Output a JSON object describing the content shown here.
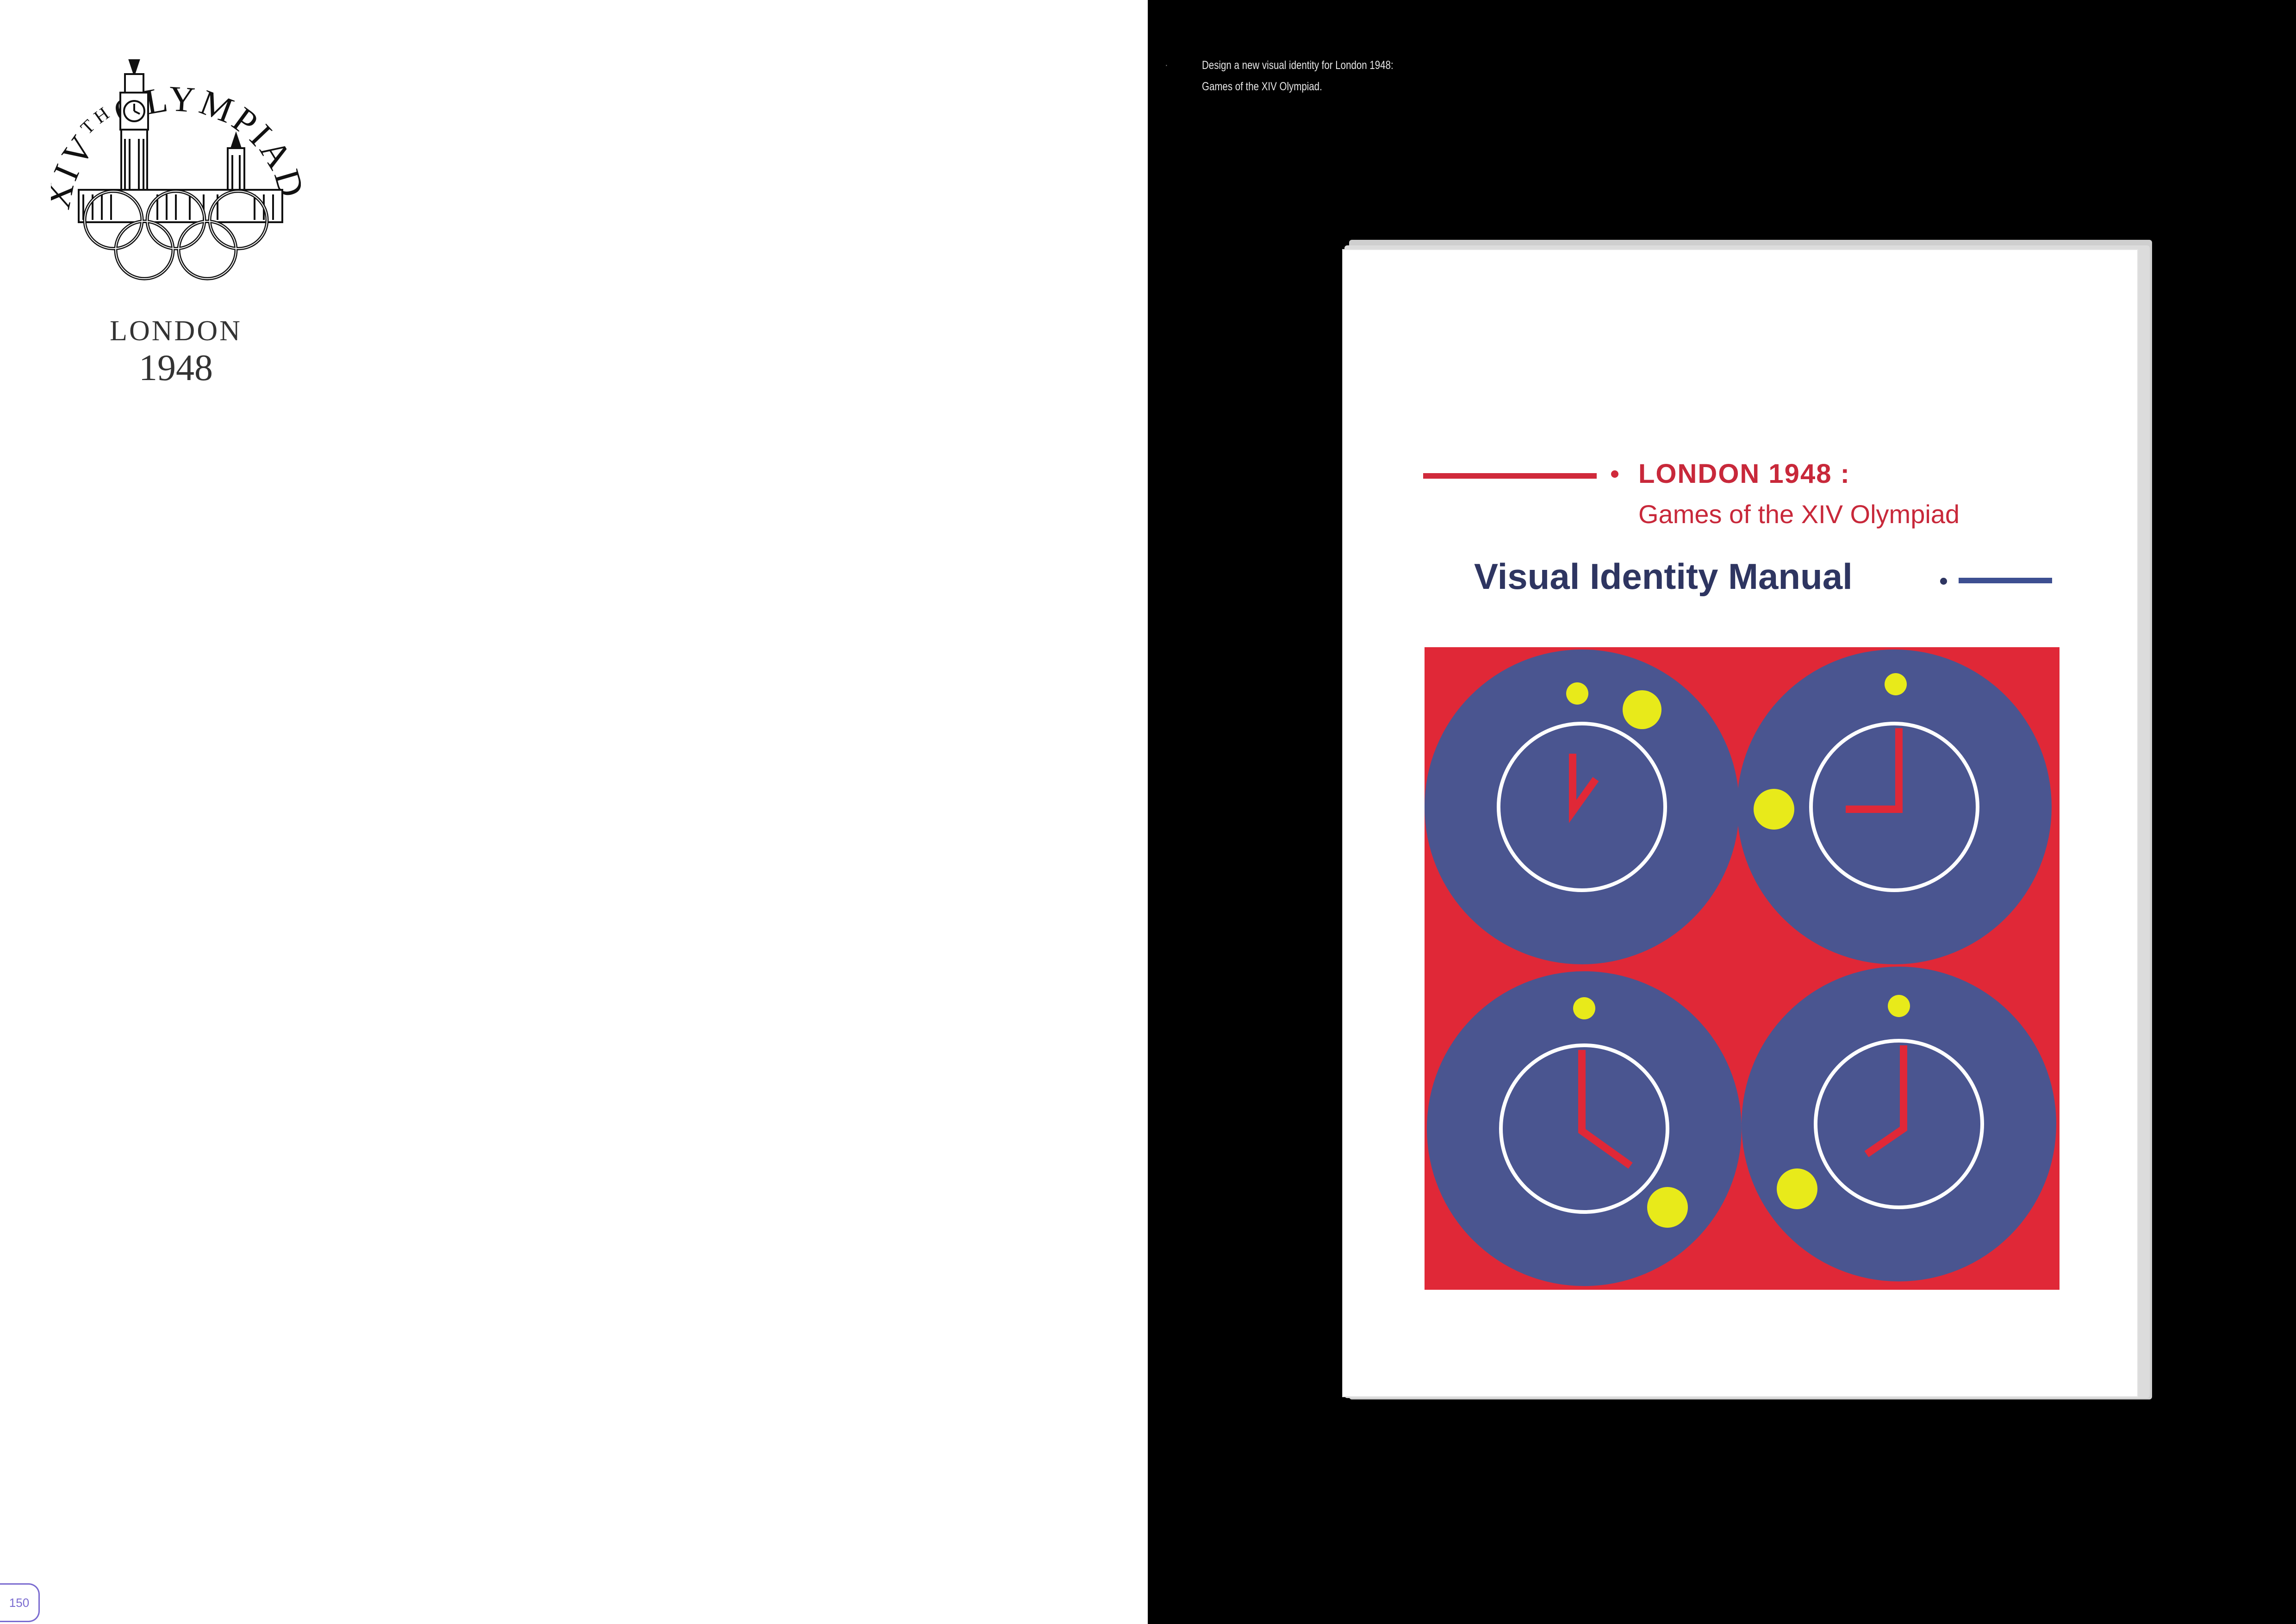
{
  "emblem": {
    "arc_text": "XIVTHOLYMPIAD",
    "city": "LONDON",
    "year": "1948"
  },
  "page_number": "150",
  "caption": {
    "line1": "Design a new visual identity for London 1948:",
    "line2": "Games of the XIV Olympiad."
  },
  "manual": {
    "title": "LONDON 1948 :",
    "subtitle": "Games of the XIV Olympiad",
    "heading": "Visual Identity Manual"
  },
  "colors": {
    "red": "#e02837",
    "navy": "#4a5590",
    "yellow": "#e8ea1a",
    "heading_blue": "#2e3561",
    "page_tab": "#7a6bd0"
  },
  "icons": {
    "emblem": "big-ben-olympic-rings-emblem",
    "artwork": "four-clocks-icon"
  }
}
